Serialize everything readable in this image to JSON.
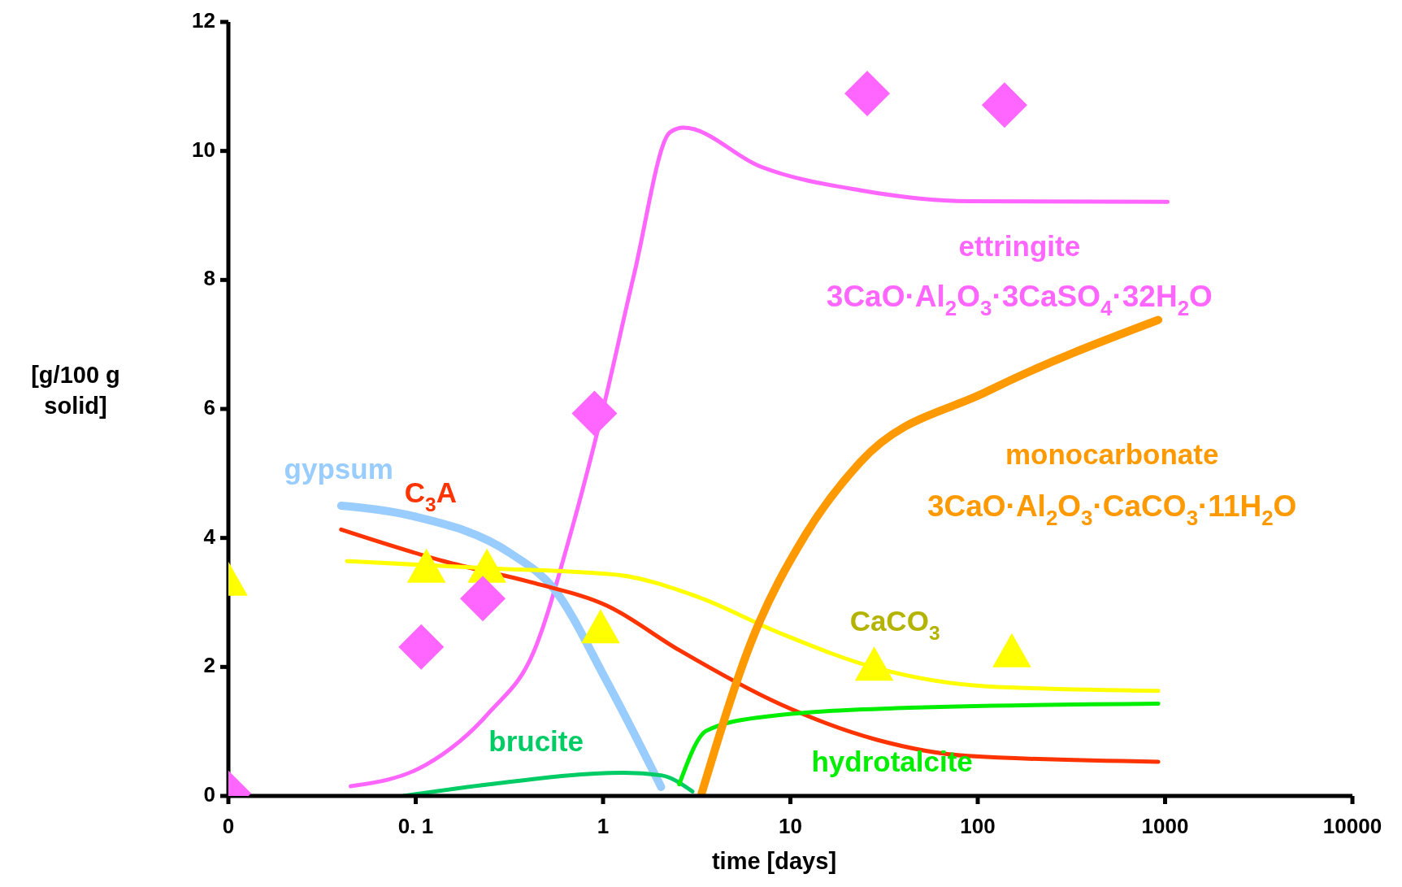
{
  "chart_data": {
    "type": "line",
    "xlabel": "time [days]",
    "ylabel": "[g/100 g solid]",
    "log": "x",
    "grid": false,
    "legend": false,
    "line_style": "solid",
    "marker": "none",
    "xlim": [
      0.01,
      10000
    ],
    "xticks": [
      {
        "value": 0.01,
        "label": "0"
      },
      {
        "value": 0.1,
        "label": "0. 1"
      },
      1,
      10,
      100,
      1000,
      10000
    ],
    "ylim": [
      0,
      12
    ],
    "yticks": [
      0,
      2,
      4,
      6,
      8,
      10,
      12
    ],
    "series": [
      {
        "name": "ettringite",
        "color": "#ff66ff",
        "x": [
          0.045,
          0.113,
          0.246,
          0.43,
          0.67,
          1,
          1.46,
          2.28,
          2.69,
          6.9,
          23.5,
          89,
          1030
        ],
        "values": [
          0.15,
          0.48,
          1.29,
          2.26,
          4.06,
          6.0,
          8.07,
          10.29,
          10.36,
          9.76,
          9.39,
          9.22,
          9.21
        ]
      },
      {
        "name": "gypsum",
        "color": "#99ccff",
        "x": [
          0.04,
          0.096,
          0.325,
          0.54,
          1.05,
          2.04
        ],
        "values": [
          4.5,
          4.34,
          3.75,
          3.23,
          1.77,
          0.14
        ]
      },
      {
        "name": "C$_{3}$A",
        "color": "#ff3300",
        "x": [
          0.04,
          0.141,
          0.43,
          1.05,
          2.55,
          8.7,
          29,
          89,
          920
        ],
        "values": [
          4.13,
          3.64,
          3.3,
          2.95,
          2.26,
          1.43,
          0.87,
          0.62,
          0.53
        ]
      },
      {
        "name": "CaCO$_{3}$",
        "color": "#ffff00",
        "x": [
          0.043,
          0.246,
          1.17,
          3.18,
          8.7,
          29,
          112,
          920
        ],
        "values": [
          3.64,
          3.53,
          3.43,
          3.09,
          2.53,
          1.98,
          1.7,
          1.63
        ]
      },
      {
        "name": "brucite",
        "color": "#00cc66",
        "x": [
          0.086,
          0.246,
          1.3,
          2.04,
          3.0
        ],
        "values": [
          0,
          0.18,
          0.36,
          0.32,
          0.07
        ]
      },
      {
        "name": "hydrotalcite",
        "color": "#00ee00",
        "x": [
          2.55,
          3.56,
          6.9,
          36.7,
          920
        ],
        "values": [
          0.18,
          1.01,
          1.22,
          1.36,
          1.43
        ]
      },
      {
        "name": "monocarbonate",
        "color": "#ff9900",
        "x": [
          3.36,
          6.2,
          12.1,
          23.5,
          112,
          920
        ],
        "values": [
          0.04,
          2.4,
          4.06,
          5.17,
          6.27,
          7.38
        ]
      },
      {
        "type": "scatter",
        "marker": "diamond",
        "color": "#ff66ff",
        "x": [
          0.01,
          0.107,
          0.228,
          0.9,
          25.7,
          139
        ],
        "values": [
          0.04,
          2.31,
          3.06,
          5.93,
          10.89,
          10.71
        ]
      },
      {
        "type": "scatter",
        "marker": "triangle",
        "color": "#ffff00",
        "x": [
          0.01,
          0.114,
          0.24,
          0.97,
          28,
          152
        ],
        "values": [
          3.37,
          3.57,
          3.57,
          2.63,
          2.05,
          2.26
        ]
      }
    ],
    "annotations": [
      "3CaO·Al$_{2}$O$_{3}$·3CaSO$_{4}$·32H$_{2}$O",
      "3CaO·Al$_{2}$O$_{3}$·CaCO$_{3}$·11H$_{2}$O"
    ]
  }
}
